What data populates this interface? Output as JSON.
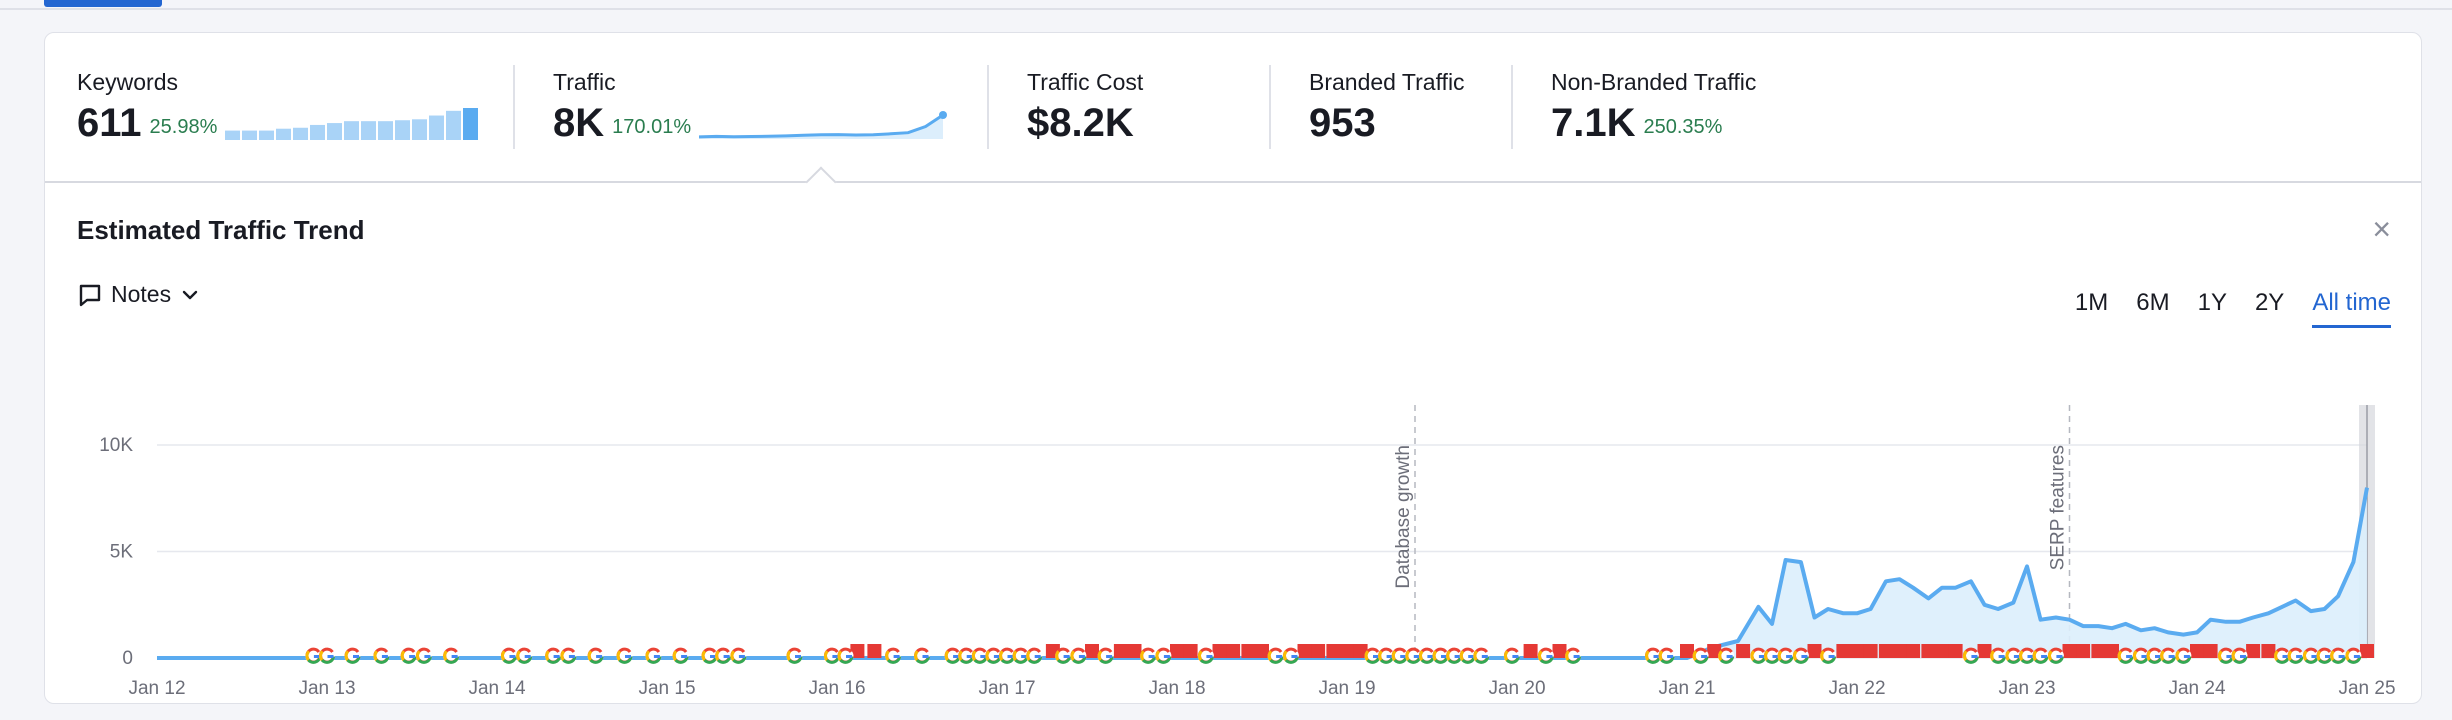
{
  "metrics": {
    "keywords": {
      "label": "Keywords",
      "value": "611",
      "change": "25.98%"
    },
    "traffic": {
      "label": "Traffic",
      "value": "8K",
      "change": "170.01%"
    },
    "traffic_cost": {
      "label": "Traffic Cost",
      "value": "$8.2K"
    },
    "branded": {
      "label": "Branded Traffic",
      "value": "953"
    },
    "non_branded": {
      "label": "Non-Branded Traffic",
      "value": "7.1K",
      "change": "250.35%"
    }
  },
  "keyword_sparkline": [
    1,
    1,
    1,
    1.2,
    1.3,
    1.6,
    1.8,
    2,
    2,
    2,
    2.1,
    2.2,
    2.6,
    3.1,
    3.4
  ],
  "traffic_sparkline": [
    0.2,
    0.25,
    0.22,
    0.24,
    0.26,
    0.3,
    0.35,
    0.4,
    0.42,
    0.38,
    0.4,
    0.5,
    0.6,
    1.2,
    2.3
  ],
  "panel": {
    "title": "Estimated Traffic Trend",
    "close": "×",
    "notes_label": "Notes",
    "periods": [
      "1M",
      "6M",
      "1Y",
      "2Y",
      "All time"
    ],
    "active_period": "All time"
  },
  "colors": {
    "line": "#5aabf0",
    "fill": "#dceefc",
    "accent": "#2366d1",
    "flag": "#e53935"
  },
  "chart_data": {
    "type": "area",
    "title": "",
    "x_labels": [
      "Jan 12",
      "Jan 13",
      "Jan 14",
      "Jan 15",
      "Jan 16",
      "Jan 17",
      "Jan 18",
      "Jan 19",
      "Jan 20",
      "Jan 21",
      "Jan 22",
      "Jan 23",
      "Jan 24",
      "Jan 25"
    ],
    "x_range": [
      2012.0,
      2025.0
    ],
    "y_ticks": [
      "0",
      "5K",
      "10K"
    ],
    "ylim": [
      0,
      10000
    ],
    "grid": true,
    "series": [
      {
        "x": [
          2012.0,
          2020.7,
          2021.0,
          2021.15,
          2021.3,
          2021.42,
          2021.5,
          2021.58,
          2021.67,
          2021.75,
          2021.83,
          2021.92,
          2022.0,
          2022.08,
          2022.17,
          2022.25,
          2022.33,
          2022.42,
          2022.5,
          2022.58,
          2022.67,
          2022.75,
          2022.83,
          2022.92,
          2023.0,
          2023.08,
          2023.17,
          2023.25,
          2023.33,
          2023.42,
          2023.5,
          2023.58,
          2023.67,
          2023.75,
          2023.83,
          2023.92,
          2024.0,
          2024.08,
          2024.17,
          2024.25,
          2024.33,
          2024.42,
          2024.5,
          2024.58,
          2024.67,
          2024.75,
          2024.83,
          2024.92,
          2025.0
        ],
        "y": [
          0,
          0,
          0,
          500,
          800,
          2400,
          1600,
          4600,
          4500,
          1900,
          2300,
          2100,
          2100,
          2300,
          3600,
          3700,
          3300,
          2800,
          3300,
          3300,
          3600,
          2500,
          2300,
          2600,
          4300,
          1800,
          1900,
          1800,
          1500,
          1500,
          1400,
          1600,
          1300,
          1400,
          1200,
          1100,
          1200,
          1800,
          1700,
          1700,
          1900,
          2100,
          2400,
          2700,
          2200,
          2300,
          2900,
          4500,
          8000
        ]
      }
    ],
    "annotations": [
      {
        "label": "Database growth",
        "x": 2019.4
      },
      {
        "label": "SERP features",
        "x": 2023.25
      }
    ],
    "google_update_markers": [
      2012.92,
      2013.0,
      2013.15,
      2013.32,
      2013.48,
      2013.57,
      2013.73,
      2014.07,
      2014.16,
      2014.33,
      2014.42,
      2014.58,
      2014.75,
      2014.92,
      2015.08,
      2015.25,
      2015.33,
      2015.42,
      2015.75,
      2015.97,
      2016.05,
      2016.33,
      2016.5,
      2016.68,
      2016.76,
      2016.84,
      2016.92,
      2017.0,
      2017.08,
      2017.16,
      2017.33,
      2017.42,
      2017.58,
      2017.83,
      2017.92,
      2018.17,
      2018.58,
      2018.67,
      2019.15,
      2019.23,
      2019.31,
      2019.39,
      2019.47,
      2019.55,
      2019.63,
      2019.71,
      2019.79,
      2019.97,
      2020.17,
      2020.33,
      2020.8,
      2020.88,
      2021.08,
      2021.23,
      2021.42,
      2021.5,
      2021.58,
      2021.67,
      2021.83,
      2022.67,
      2022.83,
      2022.92,
      2023.0,
      2023.08,
      2023.17,
      2023.58,
      2023.67,
      2023.75,
      2023.83,
      2023.92,
      2024.17,
      2024.25,
      2024.5,
      2024.58,
      2024.67,
      2024.75,
      2024.83,
      2024.92
    ],
    "flag_markers": [
      2016.12,
      2016.22,
      2017.27,
      2017.5,
      2017.67,
      2017.75,
      2018.0,
      2018.08,
      2018.25,
      2018.33,
      2018.42,
      2018.5,
      2018.75,
      2018.83,
      2018.92,
      2019.0,
      2019.08,
      2020.08,
      2020.25,
      2021.0,
      2021.16,
      2021.33,
      2021.75,
      2021.92,
      2022.0,
      2022.08,
      2022.17,
      2022.25,
      2022.33,
      2022.42,
      2022.5,
      2022.58,
      2022.75,
      2023.25,
      2023.33,
      2023.42,
      2023.5,
      2024.0,
      2024.08,
      2024.33,
      2024.42,
      2025.0
    ]
  }
}
